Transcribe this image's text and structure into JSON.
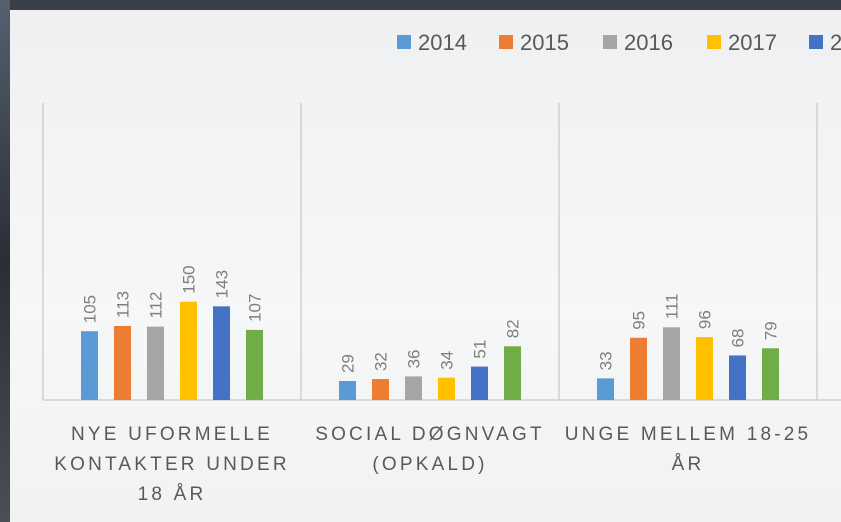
{
  "chart_data": {
    "type": "bar",
    "categories": [
      "NYE UFORMELLE KONTAKTER UNDER 18 ÅR",
      "SOCIAL DØGNVAGT (OPKALD)",
      "UNGE MELLEM 18-25 ÅR"
    ],
    "series": [
      {
        "name": "2014",
        "color": "#5b9bd5",
        "values": [
          105,
          29,
          33
        ]
      },
      {
        "name": "2015",
        "color": "#ed7d31",
        "values": [
          113,
          32,
          95
        ]
      },
      {
        "name": "2016",
        "color": "#a5a5a5",
        "values": [
          112,
          36,
          111
        ]
      },
      {
        "name": "2017",
        "color": "#ffc000",
        "values": [
          150,
          34,
          96
        ]
      },
      {
        "name": "2",
        "color": "#4472c4",
        "values": [
          143,
          51,
          68
        ]
      },
      {
        "color": "#70ad47",
        "values": [
          107,
          82,
          79
        ]
      }
    ],
    "legend": "top-right",
    "data_labels": true
  }
}
